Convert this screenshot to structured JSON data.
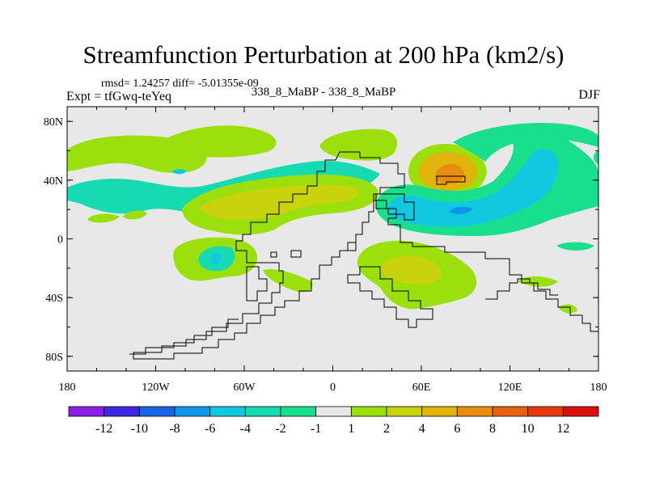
{
  "header": {
    "title": "Streamfunction Perturbation at 200 hPa (km2/s)",
    "stats": "rmsd= 1.24257 diff= -5.01355e-09",
    "experiment": "Expt = tfGwq-teYeq",
    "difference_label": "338_8_MaBP - 338_8_MaBP",
    "season": "DJF"
  },
  "chart_data": {
    "type": "heatmap",
    "title": "Streamfunction Perturbation at 200 hPa (km2/s)",
    "xlabel": "",
    "ylabel": "",
    "xlim": [
      -180,
      180
    ],
    "ylim": [
      -90,
      90
    ],
    "x_ticks": [
      {
        "value": -180,
        "label": "180"
      },
      {
        "value": -120,
        "label": "120W"
      },
      {
        "value": -60,
        "label": "60W"
      },
      {
        "value": 0,
        "label": "0"
      },
      {
        "value": 60,
        "label": "60E"
      },
      {
        "value": 120,
        "label": "120E"
      },
      {
        "value": 180,
        "label": "180"
      }
    ],
    "y_ticks": [
      {
        "value": 80,
        "label": "80N"
      },
      {
        "value": 40,
        "label": "40N"
      },
      {
        "value": 0,
        "label": "0"
      },
      {
        "value": -40,
        "label": "40S"
      },
      {
        "value": -80,
        "label": "80S"
      }
    ],
    "colorbar": {
      "labels": [
        "-12",
        "-10",
        "-8",
        "-6",
        "-4",
        "-2",
        "-1",
        "1",
        "2",
        "4",
        "6",
        "8",
        "10",
        "12"
      ],
      "colors": [
        "#8a1ee6",
        "#3b28e0",
        "#1764e6",
        "#0f96e8",
        "#11c8e0",
        "#16dab2",
        "#19de8c",
        "#e8e8e8",
        "#9be00d",
        "#c8d20d",
        "#e0b40d",
        "#e68c11",
        "#e6620f",
        "#e63a0d",
        "#dc0f0f"
      ]
    },
    "fields": [
      {
        "name": "band-40N-west",
        "level": "-1",
        "color": "#19de8c",
        "lon_range": [
          -180,
          -85
        ],
        "lat_range": [
          20,
          42
        ]
      },
      {
        "name": "band-40N-west-core",
        "level": "-2",
        "color": "#16dab2",
        "lon_range": [
          -110,
          -95
        ],
        "lat_range": [
          30,
          40
        ]
      },
      {
        "name": "trough-north-america",
        "level": "-1",
        "color": "#9be00d",
        "lon_range": [
          -180,
          -95
        ],
        "lat_range": [
          50,
          70
        ]
      },
      {
        "name": "ridge-atlantic",
        "level": "4",
        "color": "#c8d20d",
        "lon_range": [
          -90,
          30
        ],
        "lat_range": [
          20,
          40
        ]
      },
      {
        "name": "high-central-asia",
        "level": "6",
        "color": "#e0b40d",
        "lon_range": [
          60,
          90
        ],
        "lat_range": [
          35,
          60
        ]
      },
      {
        "name": "high-central-asia-core",
        "level": "8",
        "color": "#e68c11",
        "lon_range": [
          72,
          84
        ],
        "lat_range": [
          40,
          48
        ]
      },
      {
        "name": "low-pacific",
        "level": "-4",
        "color": "#11c8e0",
        "lon_range": [
          30,
          155
        ],
        "lat_range": [
          20,
          60
        ]
      },
      {
        "name": "high-southern-africa",
        "level": "2",
        "color": "#9be00d",
        "lon_range": [
          20,
          90
        ],
        "lat_range": [
          -50,
          -5
        ]
      },
      {
        "name": "high-southern-africa-core",
        "level": "4",
        "color": "#c8d20d",
        "lon_range": [
          40,
          70
        ],
        "lat_range": [
          -30,
          -15
        ]
      },
      {
        "name": "low-south-atlantic",
        "level": "-2",
        "color": "#16dab2",
        "lon_range": [
          -90,
          -40
        ],
        "lat_range": [
          -30,
          0
        ]
      },
      {
        "name": "high-south-atlantic",
        "level": "1",
        "color": "#9be00d",
        "lon_range": [
          -105,
          -5
        ],
        "lat_range": [
          -40,
          -10
        ]
      }
    ]
  }
}
